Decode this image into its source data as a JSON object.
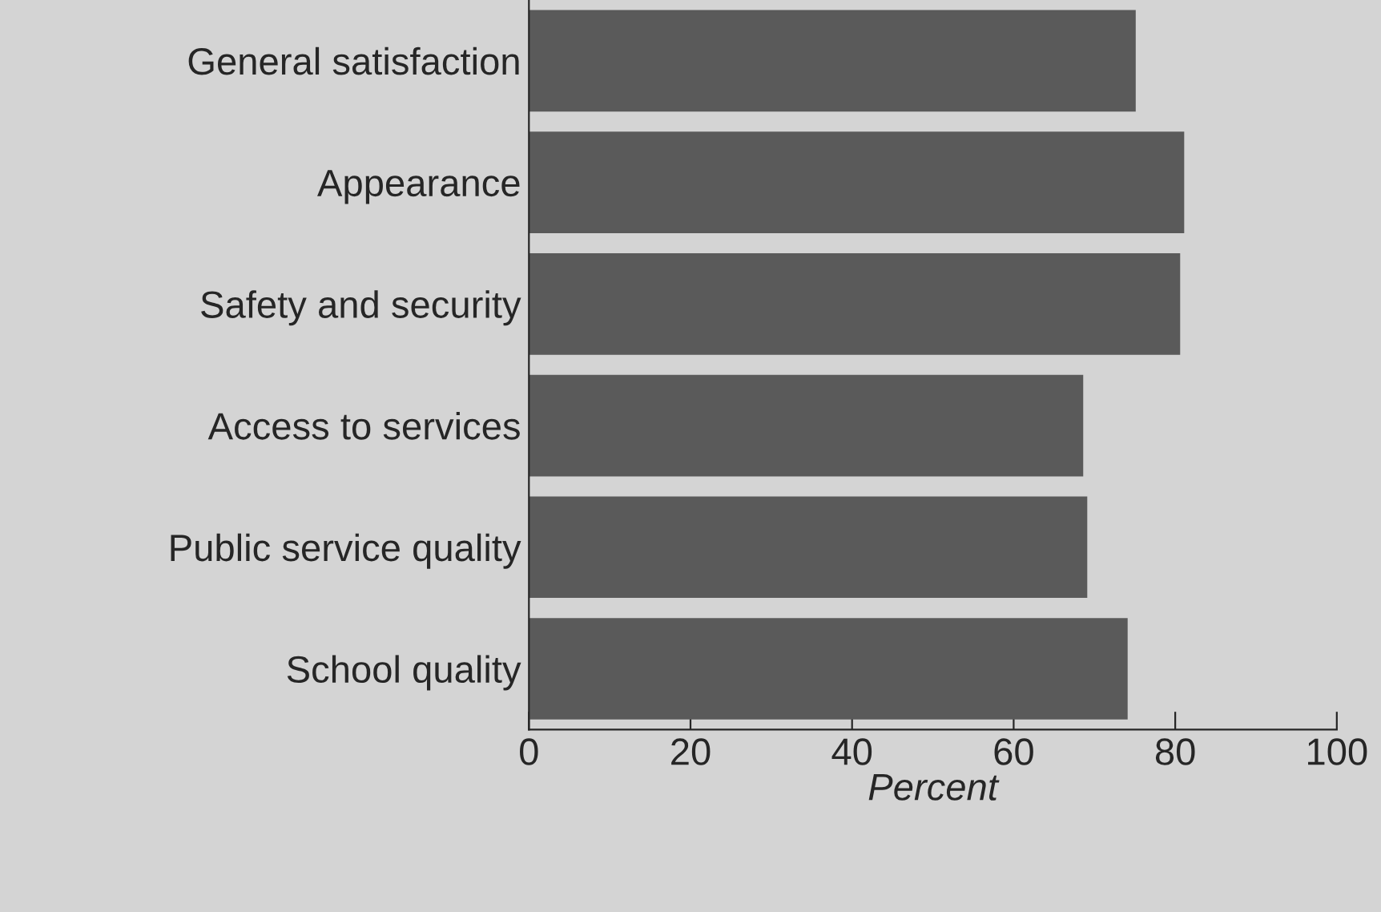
{
  "chart_data": {
    "type": "bar",
    "orientation": "horizontal",
    "xlabel": "Percent",
    "categories": [
      "General satisfaction",
      "Appearance",
      "Safety and security",
      "Access to services",
      "Public service quality",
      "School quality"
    ],
    "values": [
      75,
      81,
      80.5,
      68.5,
      69,
      74
    ],
    "color": "#5a5a5a",
    "xlim": [
      0,
      100
    ],
    "xticks": [
      0,
      20,
      40,
      60,
      80,
      100
    ],
    "grid": false
  }
}
